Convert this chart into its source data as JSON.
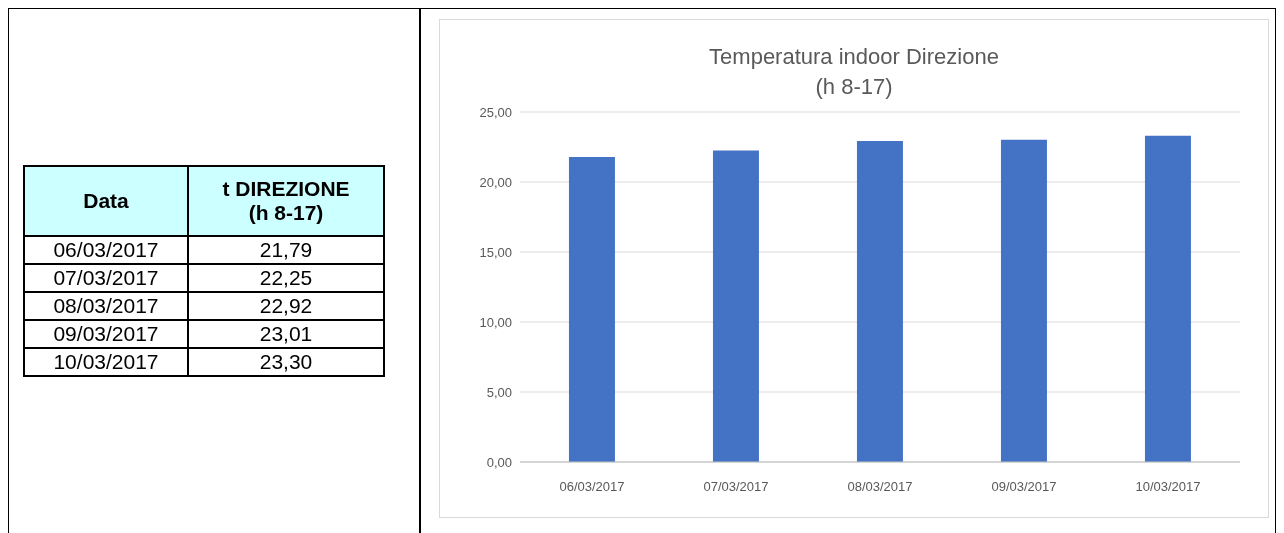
{
  "chart_data": [
    {
      "type": "other",
      "annotations": [
        "Data",
        "t DIREZIONE\n(h 8-17)",
        "06/03/2017",
        "21,79",
        "07/03/2017",
        "22,25",
        "08/03/2017",
        "22,92",
        "09/03/2017",
        "23,01",
        "10/03/2017",
        "23,30"
      ]
    },
    {
      "type": "bar",
      "title": "Temperatura indoor Direzione",
      "subtitle": "(h 8-17)",
      "categories": [
        "06/03/2017",
        "07/03/2017",
        "08/03/2017",
        "09/03/2017",
        "10/03/2017"
      ],
      "values": [
        21.79,
        22.25,
        22.92,
        23.01,
        23.3
      ],
      "color": "#4472c4",
      "ylim": [
        0,
        25
      ],
      "yticks": [
        {
          "value": 0,
          "label": "0,00"
        },
        {
          "value": 5,
          "label": "5,00"
        },
        {
          "value": 10,
          "label": "10,00"
        },
        {
          "value": 15,
          "label": "15,00"
        },
        {
          "value": 20,
          "label": "20,00"
        },
        {
          "value": 25,
          "label": "25,00"
        }
      ],
      "grid": "y"
    }
  ]
}
